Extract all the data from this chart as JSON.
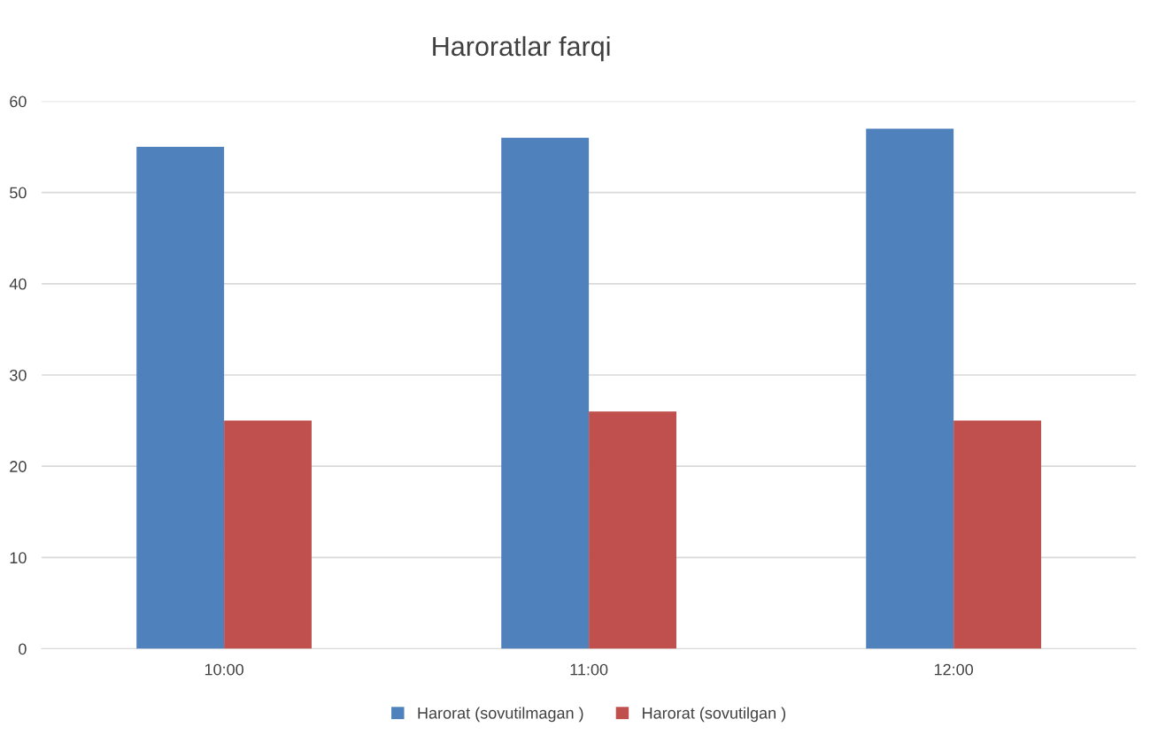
{
  "chart_data": {
    "type": "bar",
    "title": "Haroratlar farqi",
    "categories": [
      "10:00",
      "11:00",
      "12:00"
    ],
    "series": [
      {
        "name": "Harorat (sovutilmagan )",
        "color": "#4f81bd",
        "values": [
          55,
          56,
          57
        ]
      },
      {
        "name": "Harorat (sovutilgan )",
        "color": "#c0504d",
        "values": [
          25,
          26,
          25
        ]
      }
    ],
    "ylim": [
      0,
      60
    ],
    "yticks": [
      0,
      10,
      20,
      30,
      40,
      50,
      60
    ],
    "grid": "y",
    "legend": "bottom"
  }
}
